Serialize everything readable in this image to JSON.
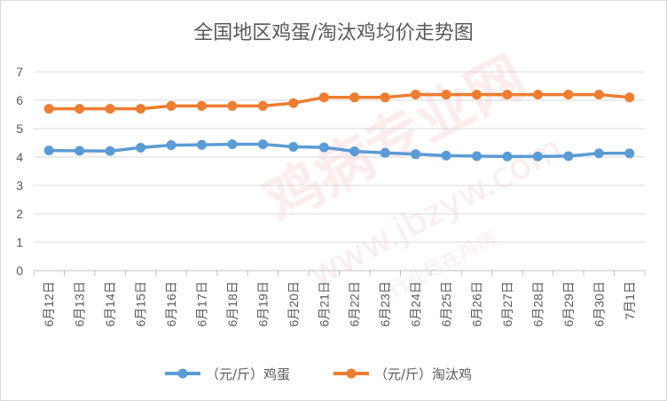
{
  "chart_data": {
    "type": "line",
    "title": "全国地区鸡蛋/淘汰鸡均价走势图",
    "categories": [
      "6月12日",
      "6月13日",
      "6月14日",
      "6月15日",
      "6月16日",
      "6月17日",
      "6月18日",
      "6月19日",
      "6月20日",
      "6月21日",
      "6月22日",
      "6月23日",
      "6月24日",
      "6月25日",
      "6月26日",
      "6月27日",
      "6月28日",
      "6月29日",
      "6月30日",
      "7月1日"
    ],
    "ylim": [
      0,
      7
    ],
    "yticks": [
      "0",
      "1",
      "2",
      "3",
      "4",
      "5",
      "6",
      "7"
    ],
    "grid": true,
    "legend_position": "bottom",
    "series": [
      {
        "name": "（元/斤）鸡蛋",
        "color": "#5b9bd5",
        "values": [
          4.23,
          4.22,
          4.21,
          4.33,
          4.42,
          4.43,
          4.45,
          4.45,
          4.36,
          4.34,
          4.2,
          4.15,
          4.1,
          4.05,
          4.03,
          4.02,
          4.02,
          4.03,
          4.13,
          4.13
        ]
      },
      {
        "name": "（元/斤）淘汰鸡",
        "color": "#ed7d31",
        "values": [
          5.7,
          5.7,
          5.7,
          5.7,
          5.8,
          5.8,
          5.8,
          5.8,
          5.9,
          6.1,
          6.1,
          6.1,
          6.2,
          6.2,
          6.2,
          6.2,
          6.2,
          6.2,
          6.2,
          6.1
        ]
      }
    ]
  },
  "watermark": {
    "main": "鸡病专业网",
    "url": "www.jbzyw.com",
    "slogan": "行业尽在鸡病"
  }
}
